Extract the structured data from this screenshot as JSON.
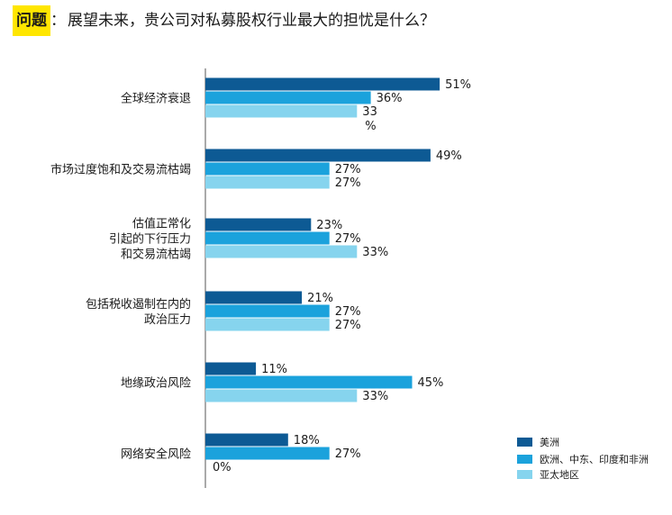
{
  "title": {
    "prefix": "问题",
    "colon": "：",
    "text": "展望未来，贵公司对私募股权行业最大的担忧是什么？"
  },
  "colors": {
    "americas": "#0d5a94",
    "emea": "#1ba2dc",
    "apac": "#86d4ee",
    "axis": "#555555",
    "title_highlight": "#ffe600"
  },
  "chart_data": {
    "type": "bar",
    "orientation": "horizontal",
    "categories": [
      [
        "全球经济衰退"
      ],
      [
        "市场过度饱和及交易流枯竭"
      ],
      [
        "估值正常化",
        "引起的下行压力",
        "和交易流枯竭"
      ],
      [
        "包括税收遏制在内的",
        "政治压力"
      ],
      [
        "地缘政治风险"
      ],
      [
        "网络安全风险"
      ]
    ],
    "series": [
      {
        "name": "美洲",
        "values": [
          51,
          49,
          23,
          21,
          11,
          18
        ],
        "labels": [
          "51%",
          "49%",
          "23%",
          "21%",
          "11%",
          "18%"
        ]
      },
      {
        "name": "欧洲、中东、印度和非洲",
        "values": [
          36,
          27,
          27,
          27,
          45,
          27
        ],
        "labels": [
          "36%",
          "27%",
          "27%",
          "27%",
          "45%",
          "27%"
        ]
      },
      {
        "name": "亚太地区",
        "values": [
          33,
          27,
          33,
          27,
          33,
          0
        ],
        "labels": [
          [
            "33",
            "%"
          ],
          "27%",
          "33%",
          "27%",
          "33%",
          "0%"
        ]
      }
    ],
    "xlim": [
      0,
      60
    ],
    "grid": false,
    "legend_position": "bottom-right"
  }
}
